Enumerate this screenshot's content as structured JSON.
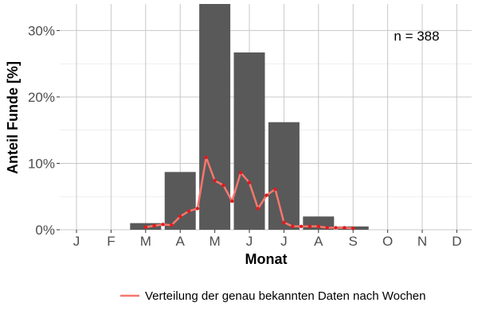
{
  "chart_data": {
    "type": "bar",
    "title": "",
    "xlabel": "Monat",
    "ylabel": "Anteil Funde [%]",
    "annotation": "n = 388",
    "ylim": [
      0,
      34
    ],
    "yticks": [
      {
        "value": 0,
        "label": "0%"
      },
      {
        "value": 10,
        "label": "10%"
      },
      {
        "value": 20,
        "label": "20%"
      },
      {
        "value": 30,
        "label": "30%"
      }
    ],
    "categories": [
      "J",
      "F",
      "M",
      "A",
      "M",
      "J",
      "J",
      "A",
      "S",
      "O",
      "N",
      "D"
    ],
    "values": [
      0,
      0,
      1.0,
      8.7,
      34.0,
      26.7,
      16.2,
      2.0,
      0.5,
      0,
      0,
      0
    ],
    "grid": true,
    "legend_position": "bottom",
    "colors": {
      "bar": "#595959",
      "line": "#f8766d",
      "point": "#e31a1c",
      "grid": "#c8c8c8"
    },
    "series": [
      {
        "type": "line",
        "name": "Verteilung der genau bekannten Daten nach Wochen",
        "x": [
          3.0,
          3.25,
          3.5,
          3.75,
          4.0,
          4.25,
          4.5,
          4.75,
          5.0,
          5.25,
          5.5,
          5.75,
          6.0,
          6.25,
          6.5,
          6.75,
          7.0,
          7.25,
          7.5,
          7.75,
          8.0,
          8.25,
          8.5,
          8.75,
          9.0
        ],
        "values": [
          0.4,
          0.6,
          0.8,
          0.7,
          2.0,
          2.8,
          3.2,
          10.9,
          7.4,
          6.7,
          4.3,
          8.6,
          7.1,
          3.2,
          5.2,
          6.1,
          1.1,
          0.5,
          0.5,
          0.5,
          0.5,
          0.3,
          0.3,
          0.3,
          0.2
        ]
      }
    ]
  }
}
